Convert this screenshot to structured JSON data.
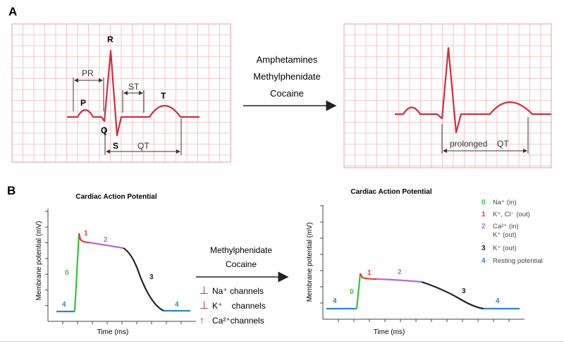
{
  "panels": {
    "a": "A",
    "b": "B"
  },
  "ecg": {
    "waves": {
      "p": "P",
      "q": "Q",
      "r": "R",
      "s": "S",
      "t": "T"
    },
    "intervals": {
      "pr": "PR",
      "st": "ST",
      "qt": "QT"
    },
    "drugs": [
      "Amphetamines",
      "Methylphenidate",
      "Cocaine"
    ],
    "prolonged_a": "prolonged",
    "prolonged_b": "QT"
  },
  "ap": {
    "title": "Cardiac Action Potential",
    "ylabel": "Membrane potential (mV)",
    "xlabel": "Time (ms)",
    "phases": [
      "0",
      "1",
      "2",
      "3",
      "4"
    ],
    "drugs": [
      "Methylphenidate",
      "Cocaine"
    ],
    "channels": [
      {
        "sym": "⊥",
        "name": "Na⁺ channels"
      },
      {
        "sym": "⊥",
        "name": "K⁺    channels"
      },
      {
        "sym": "↑",
        "name": "Ca²⁺channels"
      }
    ],
    "legend": [
      {
        "num": "0",
        "lines": [
          "Na⁺ (in)"
        ],
        "color": "#3cbf3c"
      },
      {
        "num": "1",
        "lines": [
          "K⁺, Cl⁻ (out)"
        ],
        "color": "#e53935"
      },
      {
        "num": "2",
        "lines": [
          "Ca²⁺ (in)",
          "K⁺ (out)"
        ],
        "color": "#b46bd6"
      },
      {
        "num": "3",
        "lines": [
          "K⁺ (out)"
        ],
        "color": "#222222"
      },
      {
        "num": "4",
        "lines": [
          "Resting potential"
        ],
        "color": "#2e86c1"
      }
    ]
  },
  "colors": {
    "grid": "#f2b8bc",
    "ecg": "#c8323f",
    "phase0": "#3cbf3c",
    "phase1": "#e53935",
    "phase2": "#b46bd6",
    "phase3": "#222222",
    "phase4": "#2e86c1",
    "channel": "#a83232"
  }
}
